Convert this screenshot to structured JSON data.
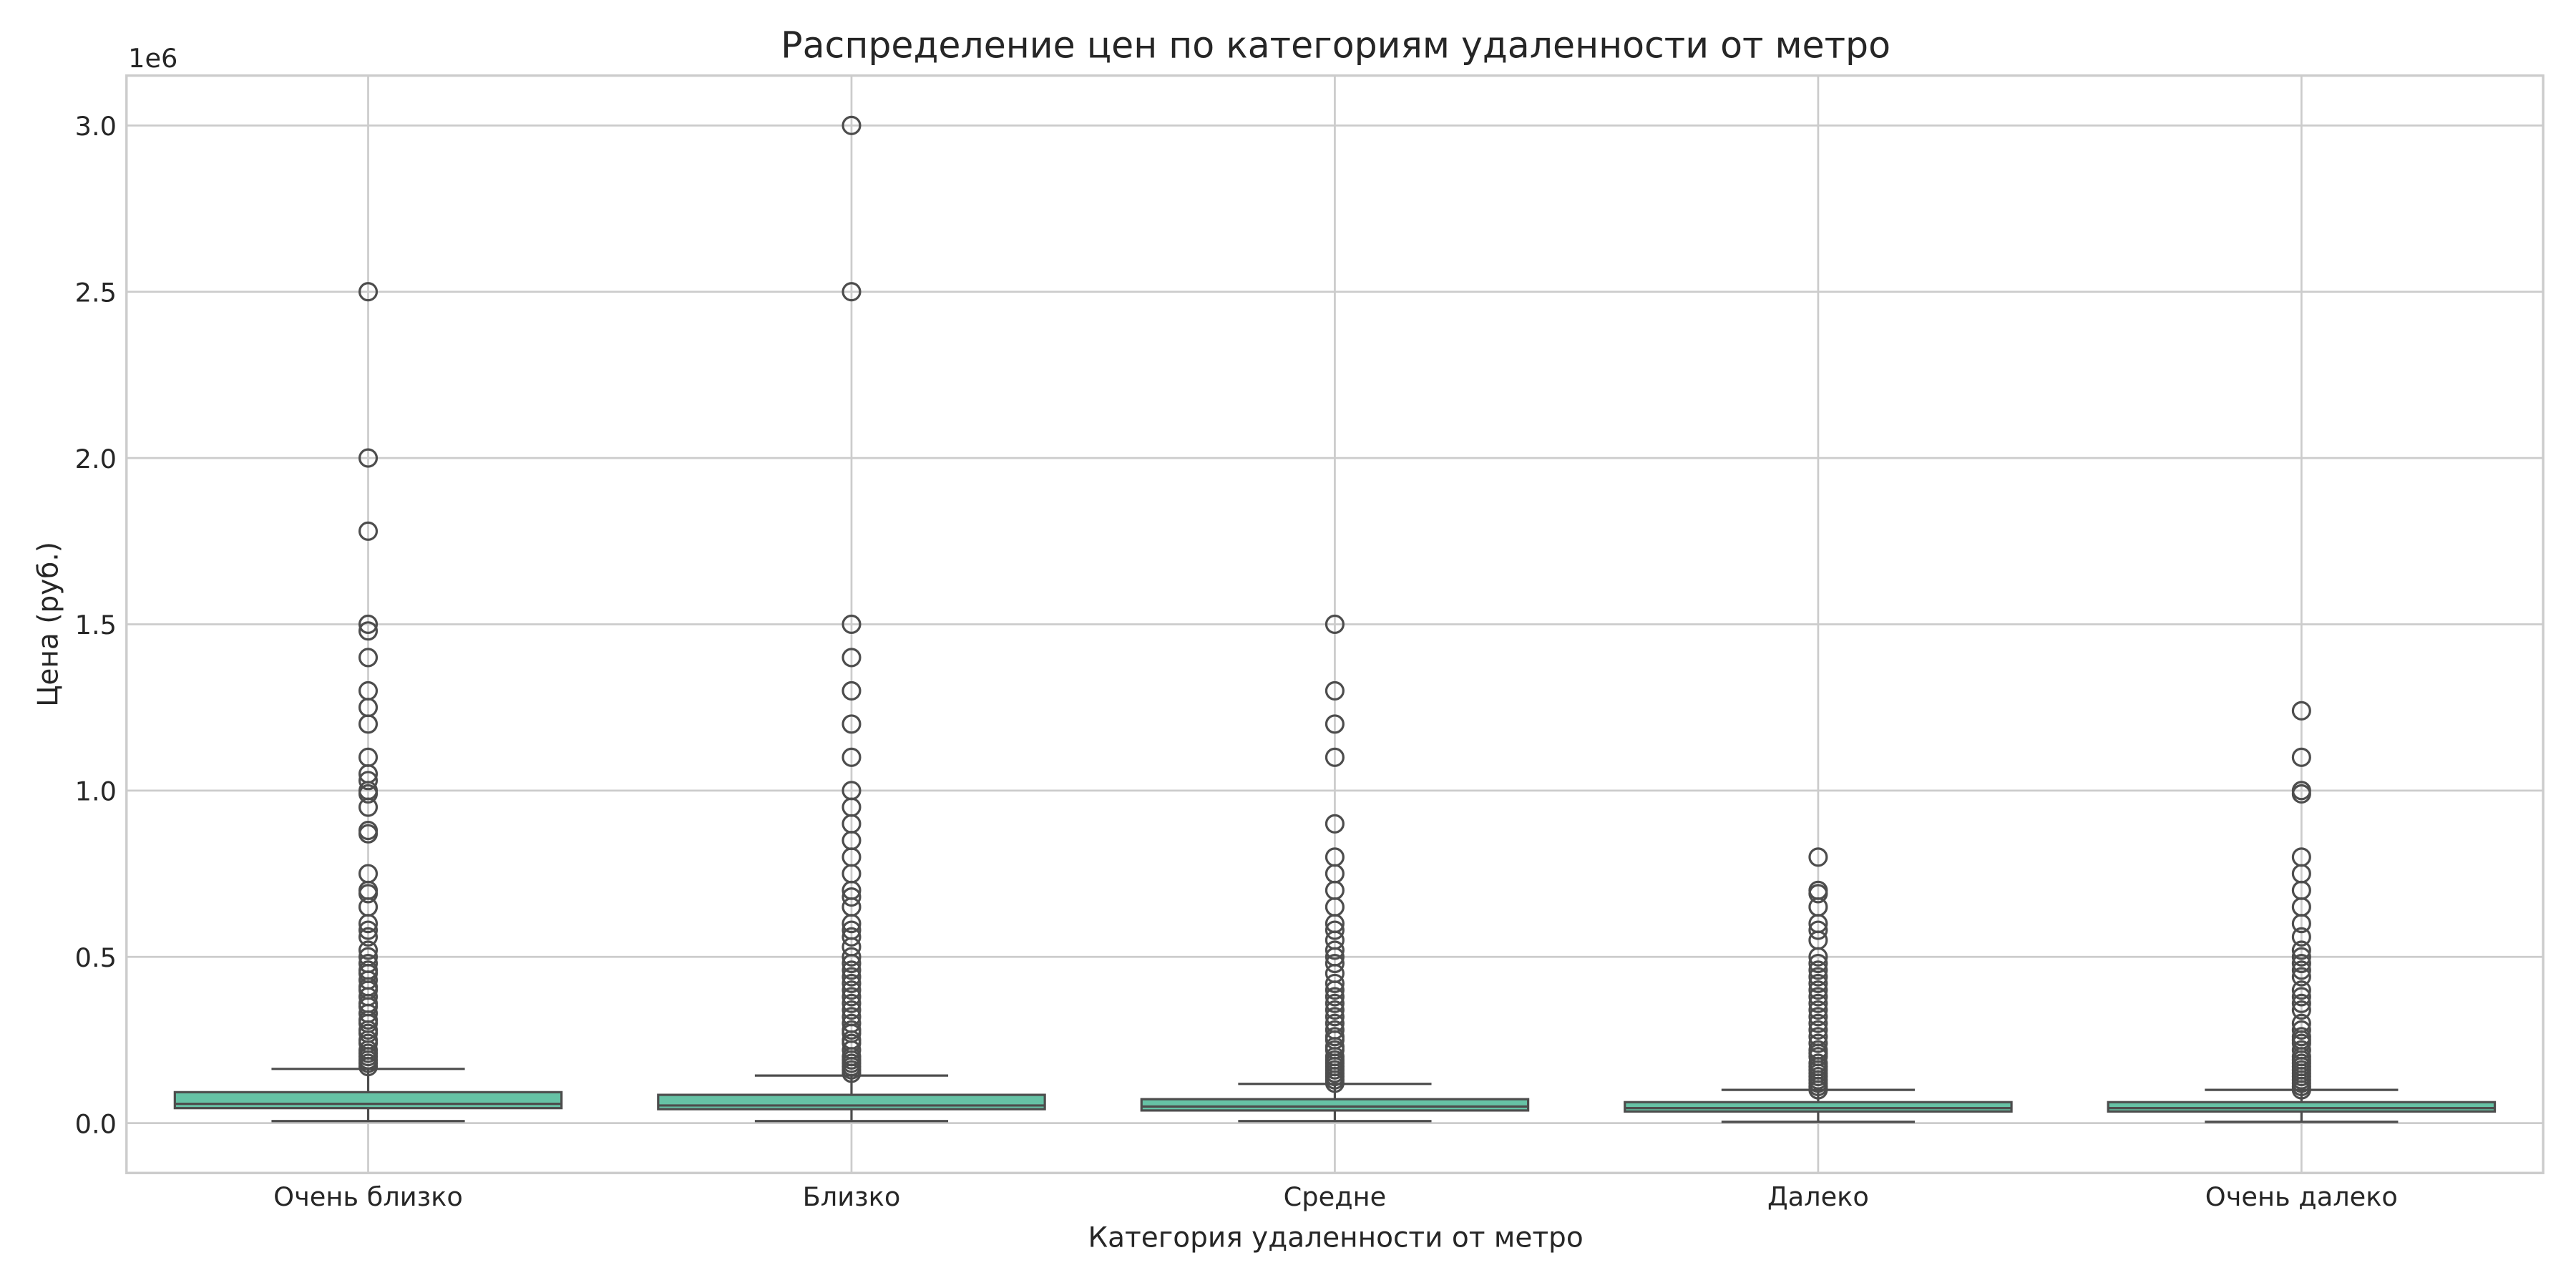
{
  "chart_data": {
    "type": "box",
    "title": "Распределение цен по категориям удаленности от метро",
    "xlabel": "Категория удаленности от метро",
    "ylabel": "Цена (руб.)",
    "y_offset_label": "1e6",
    "ylim": [
      -0.15,
      3.15
    ],
    "yticks": [
      0.0,
      0.5,
      1.0,
      1.5,
      2.0,
      2.5,
      3.0
    ],
    "ytick_labels": [
      "0.0",
      "0.5",
      "1.0",
      "1.5",
      "2.0",
      "2.5",
      "3.0"
    ],
    "grid": true,
    "box_color": "#66c2a5",
    "line_color": "#4d4d4d",
    "categories": [
      "Очень близко",
      "Близко",
      "Средне",
      "Далеко",
      "Очень далеко"
    ],
    "boxes": [
      {
        "category": "Очень близко",
        "whisker_low": 0.006,
        "q1": 0.045,
        "median": 0.058,
        "q3": 0.093,
        "whisker_high": 0.163,
        "outliers": [
          2.5,
          2.0,
          1.78,
          1.5,
          1.48,
          1.4,
          1.3,
          1.25,
          1.2,
          1.1,
          1.05,
          1.03,
          1.0,
          0.99,
          0.95,
          0.88,
          0.87,
          0.75,
          0.7,
          0.69,
          0.65,
          0.6,
          0.58,
          0.56,
          0.52,
          0.5,
          0.48,
          0.46,
          0.45,
          0.43,
          0.41,
          0.4,
          0.38,
          0.36,
          0.35,
          0.33,
          0.31,
          0.3,
          0.28,
          0.27,
          0.25,
          0.24,
          0.22,
          0.21,
          0.2,
          0.19,
          0.18,
          0.17
        ]
      },
      {
        "category": "Близко",
        "whisker_low": 0.006,
        "q1": 0.042,
        "median": 0.053,
        "q3": 0.085,
        "whisker_high": 0.143,
        "outliers": [
          3.0,
          2.5,
          1.5,
          1.4,
          1.3,
          1.2,
          1.1,
          1.0,
          0.95,
          0.9,
          0.85,
          0.8,
          0.75,
          0.7,
          0.68,
          0.65,
          0.6,
          0.58,
          0.56,
          0.53,
          0.5,
          0.48,
          0.46,
          0.44,
          0.42,
          0.4,
          0.38,
          0.36,
          0.34,
          0.32,
          0.3,
          0.28,
          0.27,
          0.25,
          0.24,
          0.22,
          0.2,
          0.19,
          0.18,
          0.17,
          0.16,
          0.15
        ]
      },
      {
        "category": "Средне",
        "whisker_low": 0.006,
        "q1": 0.038,
        "median": 0.05,
        "q3": 0.072,
        "whisker_high": 0.118,
        "outliers": [
          1.5,
          1.3,
          1.2,
          1.1,
          0.9,
          0.8,
          0.75,
          0.7,
          0.65,
          0.6,
          0.58,
          0.55,
          0.52,
          0.5,
          0.48,
          0.45,
          0.42,
          0.4,
          0.38,
          0.36,
          0.34,
          0.32,
          0.3,
          0.28,
          0.26,
          0.25,
          0.23,
          0.22,
          0.2,
          0.19,
          0.18,
          0.17,
          0.16,
          0.15,
          0.14,
          0.13,
          0.12
        ]
      },
      {
        "category": "Далеко",
        "whisker_low": 0.004,
        "q1": 0.035,
        "median": 0.045,
        "q3": 0.063,
        "whisker_high": 0.1,
        "outliers": [
          0.8,
          0.7,
          0.69,
          0.65,
          0.6,
          0.58,
          0.55,
          0.5,
          0.48,
          0.46,
          0.44,
          0.42,
          0.4,
          0.38,
          0.36,
          0.34,
          0.32,
          0.3,
          0.28,
          0.26,
          0.24,
          0.22,
          0.21,
          0.2,
          0.18,
          0.17,
          0.16,
          0.15,
          0.14,
          0.13,
          0.12,
          0.11,
          0.1
        ]
      },
      {
        "category": "Очень далеко",
        "whisker_low": 0.004,
        "q1": 0.035,
        "median": 0.045,
        "q3": 0.063,
        "whisker_high": 0.1,
        "outliers": [
          1.24,
          1.1,
          1.0,
          0.99,
          0.8,
          0.75,
          0.7,
          0.65,
          0.6,
          0.56,
          0.52,
          0.5,
          0.48,
          0.46,
          0.44,
          0.4,
          0.38,
          0.36,
          0.34,
          0.3,
          0.28,
          0.26,
          0.25,
          0.24,
          0.22,
          0.2,
          0.19,
          0.18,
          0.17,
          0.16,
          0.15,
          0.14,
          0.13,
          0.12,
          0.11,
          0.1
        ]
      }
    ]
  }
}
